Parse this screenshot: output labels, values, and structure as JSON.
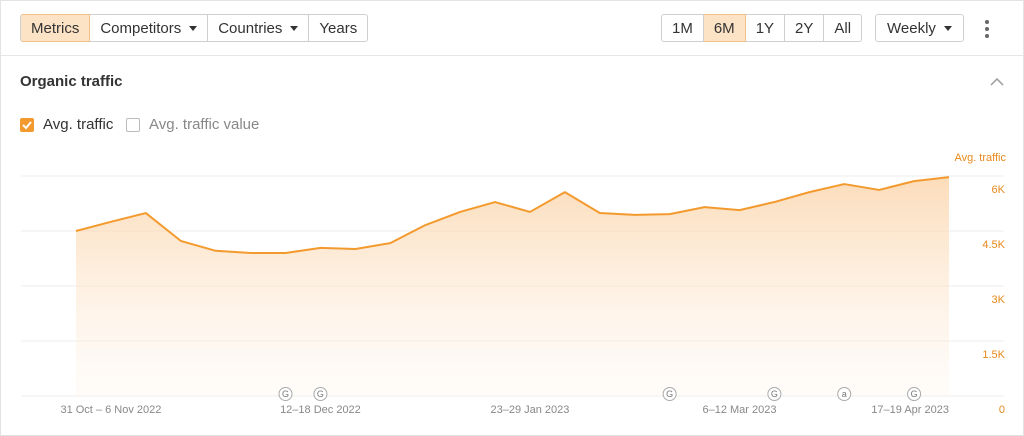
{
  "toolbar": {
    "tabs": [
      "Metrics",
      "Competitors",
      "Countries",
      "Years"
    ],
    "ranges": [
      "1M",
      "6M",
      "1Y",
      "2Y",
      "All"
    ],
    "interval": "Weekly"
  },
  "section": {
    "title": "Organic traffic",
    "second_check": "Avg. traffic value"
  },
  "chart_data": {
    "type": "area",
    "ylabel": "Avg. traffic",
    "categories": [
      null,
      "31 Oct – 6 Nov 2022",
      null,
      null,
      null,
      null,
      null,
      "12–18 Dec 2022",
      null,
      null,
      null,
      null,
      null,
      "23–29 Jan 2023",
      null,
      null,
      null,
      null,
      null,
      "6–12 Mar 2023",
      null,
      null,
      null,
      null,
      null,
      "17–19 Apr 2023"
    ],
    "series": [
      {
        "name": "Avg. traffic",
        "color": "#f39a2e",
        "values": [
          4500,
          4750,
          4990,
          4230,
          3960,
          3900,
          3900,
          4040,
          4010,
          4170,
          4660,
          5020,
          5290,
          5020,
          5560,
          4990,
          4940,
          4960,
          5150,
          5070,
          5290,
          5560,
          5780,
          5620,
          5860,
          5970
        ]
      }
    ],
    "markers": [
      null,
      null,
      null,
      null,
      null,
      null,
      "G",
      "G",
      null,
      null,
      null,
      null,
      null,
      null,
      null,
      null,
      null,
      "G",
      null,
      null,
      "G",
      null,
      "a",
      null,
      "G",
      null
    ],
    "ylim": [
      0,
      6000
    ],
    "yticks": [
      0,
      {
        "value": 1500,
        "label": "1.5K"
      },
      {
        "value": 3000,
        "label": "3K"
      },
      {
        "value": 4500,
        "label": "4.5K"
      },
      {
        "value": 6000,
        "label": "6K"
      }
    ],
    "grid": true
  }
}
